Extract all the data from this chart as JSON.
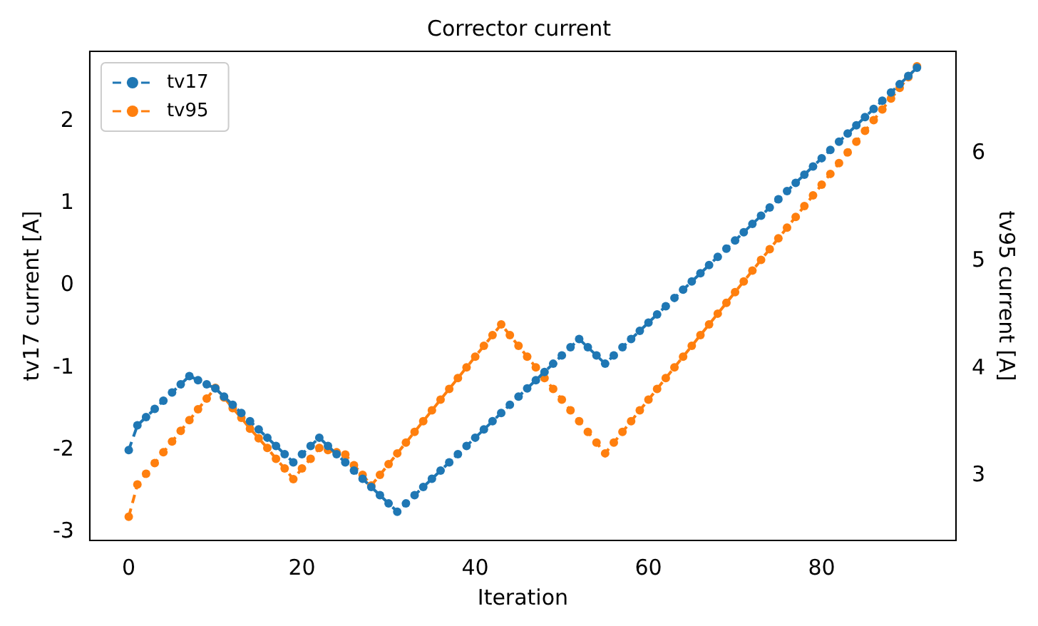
{
  "chart_data": {
    "type": "line",
    "title": "Corrector current",
    "xlabel": "Iteration",
    "ylabel": "tv17 current [A]",
    "y2label": "tv95 current [A]",
    "x": [
      0,
      1,
      2,
      3,
      4,
      5,
      6,
      7,
      8,
      9,
      10,
      11,
      12,
      13,
      14,
      15,
      16,
      17,
      18,
      19,
      20,
      21,
      22,
      23,
      24,
      25,
      26,
      27,
      28,
      29,
      30,
      31,
      32,
      33,
      34,
      35,
      36,
      37,
      38,
      39,
      40,
      41,
      42,
      43,
      44,
      45,
      46,
      47,
      48,
      49,
      50,
      51,
      52,
      53,
      54,
      55,
      56,
      57,
      58,
      59,
      60,
      61,
      62,
      63,
      64,
      65,
      66,
      67,
      68,
      69,
      70,
      71,
      72,
      73,
      74,
      75,
      76,
      77,
      78,
      79,
      80,
      81,
      82,
      83,
      84,
      85,
      86,
      87,
      88,
      89,
      90,
      91
    ],
    "series": [
      {
        "name": "tv17",
        "color": "#1f77b4",
        "values": [
          -2.0,
          -1.7,
          -1.6,
          -1.5,
          -1.4,
          -1.3,
          -1.2,
          -1.1,
          -1.15,
          -1.2,
          -1.25,
          -1.35,
          -1.45,
          -1.55,
          -1.65,
          -1.75,
          -1.85,
          -1.95,
          -2.05,
          -2.15,
          -2.05,
          -1.95,
          -1.85,
          -1.95,
          -2.05,
          -2.15,
          -2.25,
          -2.35,
          -2.45,
          -2.55,
          -2.65,
          -2.75,
          -2.65,
          -2.55,
          -2.45,
          -2.35,
          -2.25,
          -2.15,
          -2.05,
          -1.95,
          -1.85,
          -1.75,
          -1.65,
          -1.55,
          -1.45,
          -1.35,
          -1.25,
          -1.15,
          -1.05,
          -0.95,
          -0.85,
          -0.75,
          -0.65,
          -0.75,
          -0.85,
          -0.95,
          -0.85,
          -0.75,
          -0.65,
          -0.55,
          -0.45,
          -0.35,
          -0.25,
          -0.15,
          -0.05,
          0.05,
          0.15,
          0.25,
          0.35,
          0.45,
          0.55,
          0.65,
          0.75,
          0.85,
          0.95,
          1.05,
          1.15,
          1.25,
          1.35,
          1.45,
          1.55,
          1.65,
          1.75,
          1.85,
          1.95,
          2.05,
          2.15,
          2.25,
          2.35,
          2.45,
          2.55,
          2.65
        ]
      },
      {
        "name": "tv95",
        "color": "#ff7f0e",
        "axis": "y2",
        "values": [
          2.62,
          2.92,
          3.02,
          3.12,
          3.22,
          3.32,
          3.42,
          3.52,
          3.62,
          3.72,
          3.82,
          3.73,
          3.63,
          3.54,
          3.44,
          3.35,
          3.26,
          3.16,
          3.07,
          2.97,
          3.07,
          3.16,
          3.26,
          3.24,
          3.22,
          3.2,
          3.1,
          3.01,
          2.91,
          3.01,
          3.11,
          3.21,
          3.31,
          3.41,
          3.51,
          3.61,
          3.71,
          3.81,
          3.91,
          4.01,
          4.11,
          4.21,
          4.31,
          4.41,
          4.31,
          4.21,
          4.11,
          4.01,
          3.91,
          3.81,
          3.71,
          3.61,
          3.51,
          3.41,
          3.31,
          3.21,
          3.31,
          3.41,
          3.51,
          3.61,
          3.71,
          3.81,
          3.91,
          4.01,
          4.11,
          4.21,
          4.31,
          4.41,
          4.51,
          4.61,
          4.71,
          4.81,
          4.91,
          5.01,
          5.11,
          5.21,
          5.31,
          5.41,
          5.51,
          5.61,
          5.71,
          5.81,
          5.91,
          6.01,
          6.11,
          6.21,
          6.31,
          6.41,
          6.51,
          6.61,
          6.71,
          6.81
        ]
      }
    ],
    "xlim": [
      -4.5,
      95.5
    ],
    "xticks": [
      0,
      20,
      40,
      60,
      80
    ],
    "ylim": [
      -3.1,
      2.85
    ],
    "yticks": [
      -3,
      -2,
      -1,
      0,
      1,
      2
    ],
    "y2lim": [
      2.4,
      6.95
    ],
    "y2ticks": [
      3,
      4,
      5,
      6
    ],
    "grid": false,
    "legend": "top left",
    "marker": "circle",
    "line_style": "dashed"
  }
}
